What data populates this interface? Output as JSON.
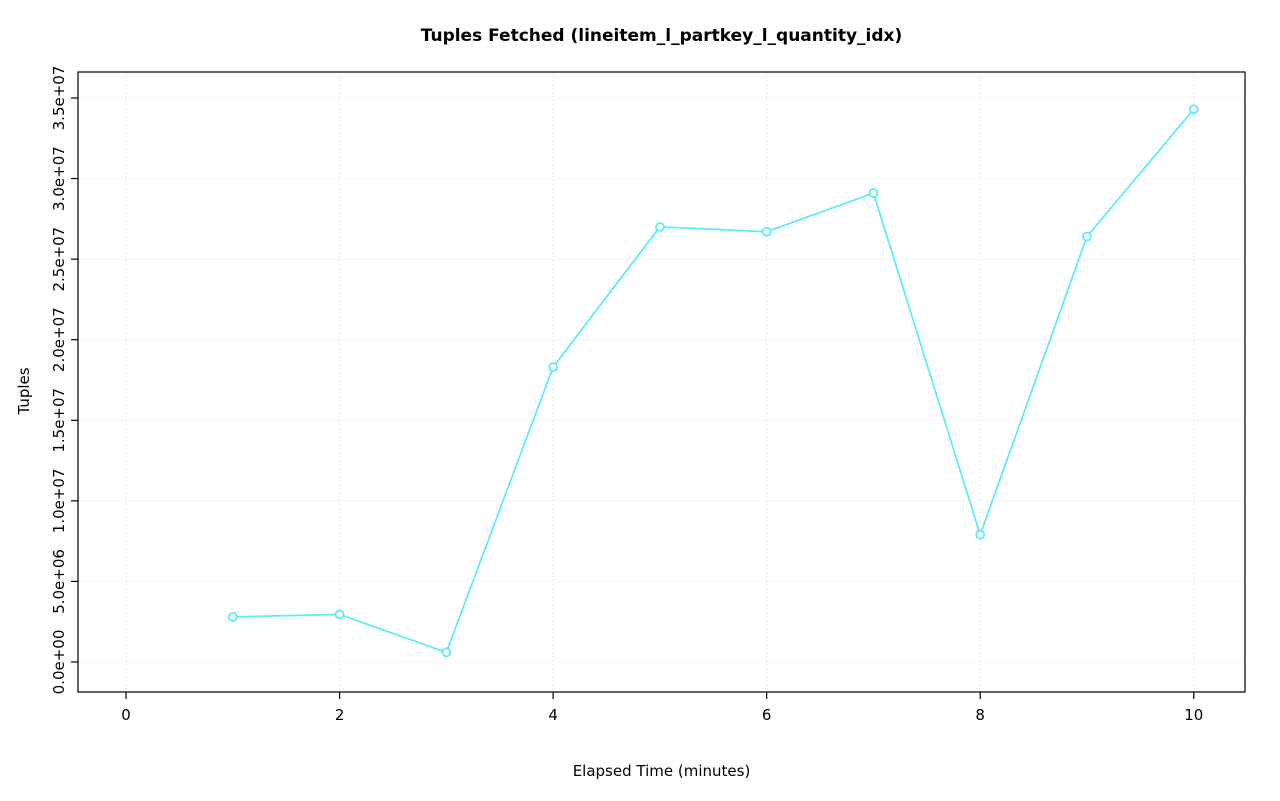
{
  "title": "Tuples Fetched (lineitem_l_partkey_l_quantity_idx)",
  "chart_data": {
    "type": "line",
    "title": "Tuples Fetched (lineitem_l_partkey_l_quantity_idx)",
    "xlabel": "Elapsed Time (minutes)",
    "ylabel": "Tuples",
    "x": [
      1,
      2,
      3,
      4,
      5,
      6,
      7,
      8,
      9,
      10
    ],
    "values": [
      2800000,
      2950000,
      600000,
      18300000,
      27000000,
      26700000,
      29100000,
      7900000,
      26400000,
      34300000
    ],
    "series_name": "tuples_fetched",
    "xlim": [
      -0.45,
      10.48
    ],
    "ylim": [
      -1862000,
      36613000
    ],
    "xticks": [
      0,
      2,
      4,
      6,
      8,
      10
    ],
    "xtick_labels": [
      "0",
      "2",
      "4",
      "6",
      "8",
      "10"
    ],
    "yticks": [
      0,
      5000000,
      10000000,
      15000000,
      20000000,
      25000000,
      30000000,
      35000000
    ],
    "ytick_labels": [
      "0.0e+00",
      "5.0e+06",
      "1.0e+07",
      "1.5e+07",
      "2.0e+07",
      "2.5e+07",
      "3.0e+07",
      "3.5e+07"
    ],
    "grid": true,
    "legend": "none",
    "marker": "open-circle",
    "line_color": "#5beef2",
    "grid_color": "#d9d9d9",
    "background": "#ffffff"
  }
}
